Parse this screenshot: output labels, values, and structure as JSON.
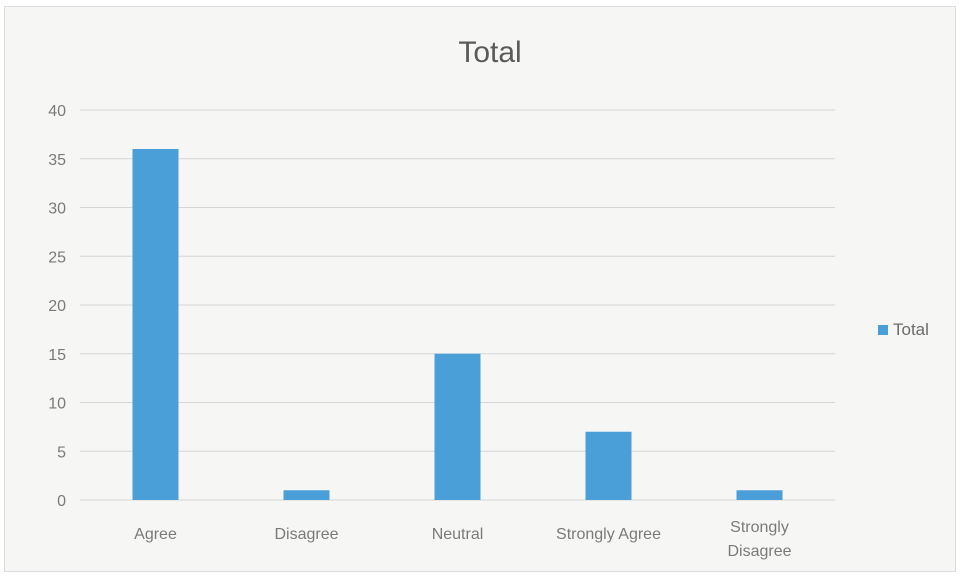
{
  "chart_data": {
    "type": "bar",
    "title": "Total",
    "categories": [
      "Agree",
      "Disagree",
      "Neutral",
      "Strongly Agree",
      "Strongly Disagree"
    ],
    "category_lines": [
      [
        "Agree"
      ],
      [
        "Disagree"
      ],
      [
        "Neutral"
      ],
      [
        "Strongly Agree"
      ],
      [
        "Strongly",
        "Disagree"
      ]
    ],
    "series": [
      {
        "name": "Total",
        "values": [
          36,
          1,
          15,
          7,
          1
        ]
      }
    ],
    "ylim": [
      0,
      40
    ],
    "yticks": [
      0,
      5,
      10,
      15,
      20,
      25,
      30,
      35,
      40
    ],
    "ytick_labels": [
      "0",
      "5",
      "10",
      "15",
      "20",
      "25",
      "30",
      "35",
      "40"
    ],
    "grid": true,
    "legend_position": "right",
    "bar_color": "#4a9fd9",
    "grid_color": "#d6d6d6",
    "label_color": "#7a7a7a"
  }
}
